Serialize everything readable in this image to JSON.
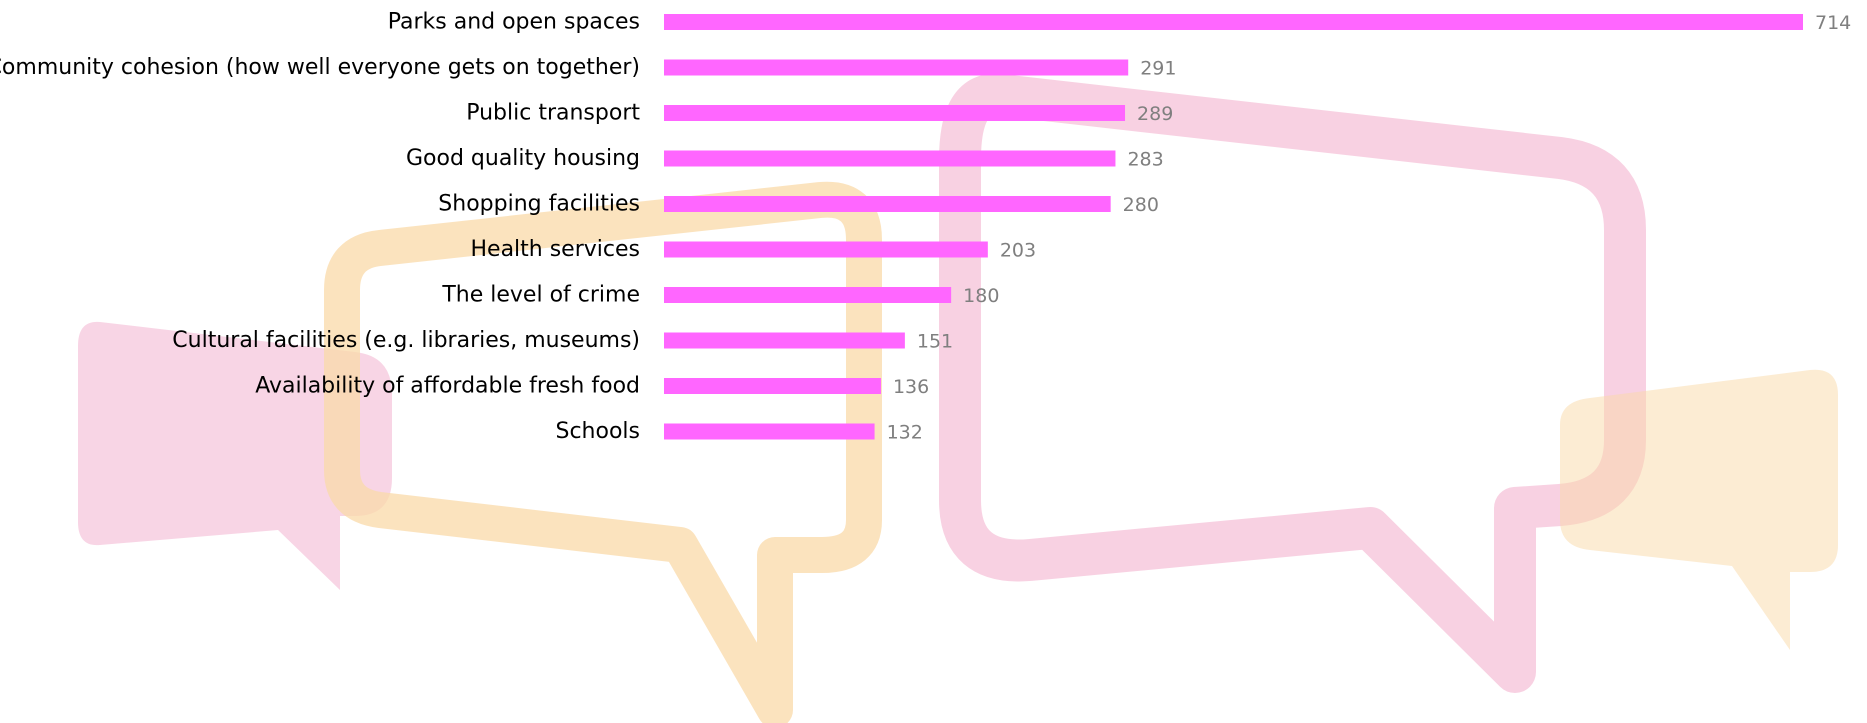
{
  "colors": {
    "bar": "#ff66ff",
    "label": "#000000",
    "value_label": "#7f7f7f",
    "bubble_pink": "#f3b3cf",
    "bubble_orange": "#f9d9a8"
  },
  "decorations": {
    "icons": [
      "speech-bubble-pink-small",
      "speech-bubble-orange-outline",
      "speech-bubble-pink-outline",
      "speech-bubble-orange-small"
    ]
  },
  "chart_data": {
    "type": "bar",
    "orientation": "horizontal",
    "categories": [
      "Parks and open spaces",
      "Community cohesion (how well everyone gets on together)",
      "Public transport",
      "Good quality housing",
      "Shopping facilities",
      "Health services",
      "The level of crime",
      "Cultural facilities (e.g. libraries, museums)",
      "Availability of affordable fresh food",
      "Schools"
    ],
    "values": [
      714,
      291,
      289,
      283,
      280,
      203,
      180,
      151,
      136,
      132
    ],
    "value_labels": [
      "714",
      "291",
      "289",
      "283",
      "280",
      "203",
      "180",
      "151",
      "136",
      "132"
    ],
    "title": "",
    "xlabel": "",
    "ylabel": "",
    "xlim": [
      0,
      714
    ],
    "grid": false,
    "legend": "none",
    "data_labels": true
  }
}
